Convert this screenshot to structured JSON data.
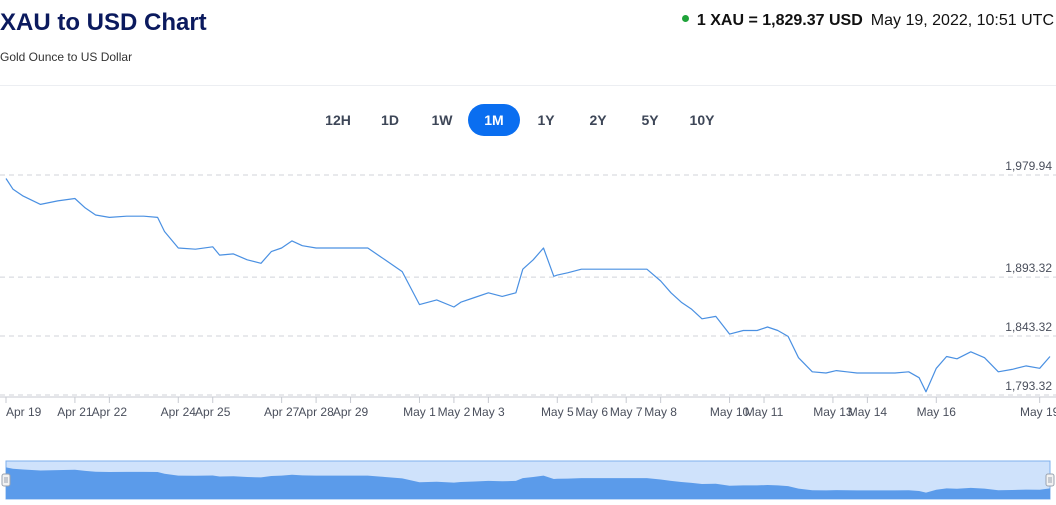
{
  "header": {
    "title": "XAU to USD Chart",
    "subtitle": "Gold Ounce to US Dollar",
    "rate_text": "1 XAU = 1,829.37 USD",
    "timestamp": "May 19, 2022, 10:51 UTC",
    "status_color": "#1fa33a"
  },
  "range_tabs": [
    {
      "label": "12H",
      "active": false
    },
    {
      "label": "1D",
      "active": false
    },
    {
      "label": "1W",
      "active": false
    },
    {
      "label": "1M",
      "active": true
    },
    {
      "label": "1Y",
      "active": false
    },
    {
      "label": "2Y",
      "active": false
    },
    {
      "label": "5Y",
      "active": false
    },
    {
      "label": "10Y",
      "active": false
    }
  ],
  "colors": {
    "line": "#4a90e2",
    "accent": "#0a6ef0",
    "navigator_fill": "#5b9bea",
    "navigator_bg": "#cfe2fb"
  },
  "chart_data": {
    "type": "line",
    "ylim": [
      1793.32,
      1979.94
    ],
    "y_ticks": [
      "1,979.94",
      "1,893.32",
      "1,843.32",
      "1,793.32"
    ],
    "y_tick_values": [
      1979.94,
      1893.32,
      1843.32,
      1793.32
    ],
    "x_tick_labels": [
      "Apr 19",
      "Apr 21",
      "Apr 22",
      "Apr 24",
      "Apr 25",
      "Apr 27",
      "Apr 28",
      "Apr 29",
      "May 1",
      "May 2",
      "May 3",
      "May 5",
      "May 6",
      "May 7",
      "May 8",
      "May 10",
      "May 11",
      "May 13",
      "May 14",
      "May 16",
      "May 19"
    ],
    "x_tick_positions": [
      0,
      2,
      3,
      5,
      6,
      8,
      9,
      10,
      12,
      13,
      14,
      16,
      17,
      18,
      19,
      21,
      22,
      24,
      25,
      27,
      30
    ],
    "grid": true,
    "series": [
      {
        "x": [
          0,
          0.2,
          0.5,
          1.0,
          1.5,
          2.0,
          2.3,
          2.6,
          3.0,
          3.5,
          4.0,
          4.4,
          4.6,
          5.0,
          5.5,
          6.0,
          6.2,
          6.6,
          7.0,
          7.4,
          7.7,
          8.0,
          8.3,
          8.6,
          9.0,
          9.3,
          9.6,
          10.0,
          10.5,
          11.0,
          11.5,
          12.0,
          12.5,
          13.0,
          13.2,
          13.6,
          14.0,
          14.4,
          14.8,
          15.0,
          15.3,
          15.6,
          15.9,
          16.0,
          16.3,
          16.7,
          17.0,
          17.4,
          17.8,
          18.2,
          18.6,
          19.0,
          19.3,
          19.6,
          19.9,
          20.2,
          20.6,
          21.0,
          21.4,
          21.8,
          22.1,
          22.4,
          22.7,
          23.0,
          23.4,
          23.8,
          24.1,
          24.4,
          24.7,
          25.0,
          25.4,
          25.8,
          26.2,
          26.5,
          26.7,
          27.0,
          27.3,
          27.6,
          28.0,
          28.4,
          28.8,
          29.2,
          29.6,
          30.0,
          30.3
        ],
        "values": [
          1977,
          1968,
          1962,
          1955,
          1958,
          1960,
          1952,
          1946,
          1944,
          1945,
          1945,
          1944,
          1932,
          1918,
          1917,
          1919,
          1912,
          1913,
          1908,
          1905,
          1915,
          1918,
          1924,
          1920,
          1918,
          1918,
          1918,
          1918,
          1918,
          1908,
          1898,
          1870,
          1874,
          1868,
          1872,
          1876,
          1880,
          1877,
          1880,
          1900,
          1908,
          1918,
          1894,
          1895,
          1897,
          1900,
          1900,
          1900,
          1900,
          1900,
          1900,
          1890,
          1880,
          1872,
          1866,
          1858,
          1860,
          1845,
          1848,
          1848,
          1851,
          1848,
          1843,
          1825,
          1813,
          1812,
          1814,
          1813,
          1812,
          1812,
          1812,
          1812,
          1813,
          1808,
          1796,
          1816,
          1826,
          1824,
          1830,
          1825,
          1813,
          1815,
          1818,
          1816,
          1826
        ]
      }
    ]
  }
}
